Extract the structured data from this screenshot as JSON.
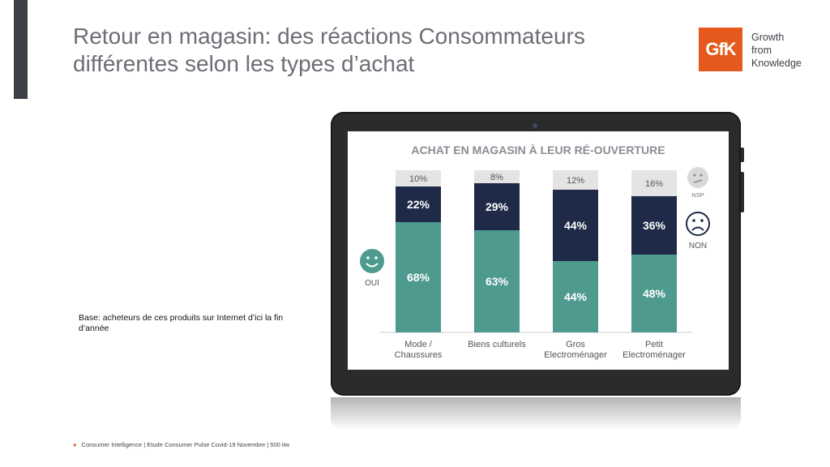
{
  "title": {
    "line1": "Retour en magasin: des réactions Consommateurs",
    "line2": "différentes selon les types d’achat"
  },
  "logo": {
    "mark": "GfK",
    "tagline": [
      "Growth",
      "from",
      "Knowledge"
    ],
    "brand_color": "#e55a1c"
  },
  "base_note": "Base: acheteurs de ces produits sur Internet d’ici la fin d’année",
  "footer": "Consumer Intelligence | Etude Consumer Pulse Covid-19 Novembre | 500 itw",
  "chart_data": {
    "type": "bar",
    "stacked": true,
    "title": "ACHAT EN MAGASIN À LEUR RÉ-OUVERTURE",
    "categories": [
      [
        "Mode /",
        "Chaussures"
      ],
      [
        "Biens culturels"
      ],
      [
        "Gros",
        "Electroménager"
      ],
      [
        "Petit",
        "Electroménager"
      ]
    ],
    "series": [
      {
        "name": "OUI",
        "values": [
          68,
          63,
          44,
          48
        ],
        "color": "#4e9a8f",
        "icon": "happy-face-icon"
      },
      {
        "name": "NON",
        "values": [
          22,
          29,
          44,
          36
        ],
        "color": "#1e2a47",
        "icon": "sad-face-icon"
      },
      {
        "name": "NSP",
        "values": [
          10,
          8,
          12,
          16
        ],
        "color": "#e4e4e4",
        "icon": "neutral-face-icon"
      }
    ],
    "unit": "%",
    "ylim": [
      0,
      100
    ]
  }
}
